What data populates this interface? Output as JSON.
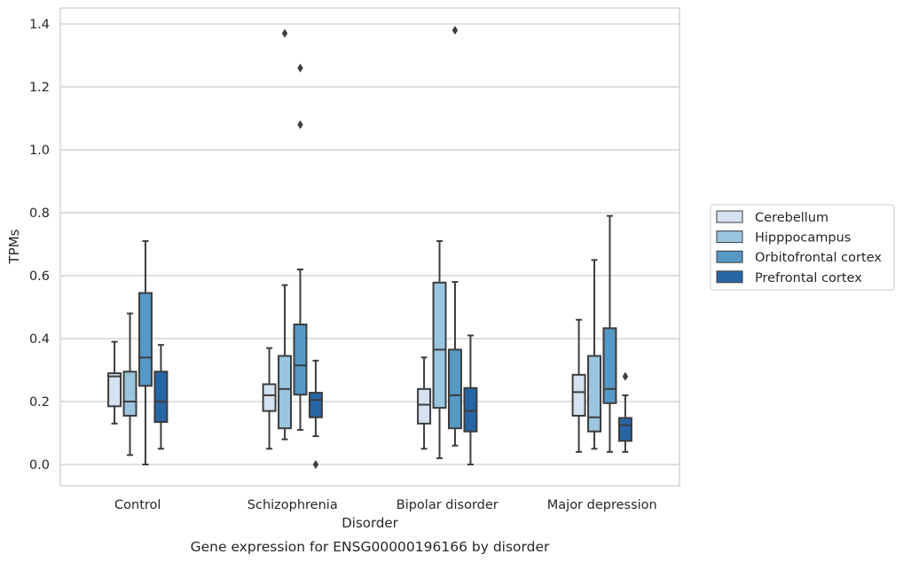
{
  "chart_data": {
    "type": "box",
    "title": "",
    "caption": "Gene expression for ENSG00000196166 by disorder",
    "xlabel": "Disorder",
    "ylabel": "TPMs",
    "ylim": [
      -0.065,
      1.45
    ],
    "yticks": [
      "0.0",
      "0.2",
      "0.4",
      "0.6",
      "0.8",
      "1.0",
      "1.2",
      "1.4"
    ],
    "grid": "horizontal",
    "legend_position": "right",
    "categories": [
      "Control",
      "Schizophrenia",
      "Bipolar disorder",
      "Major depression"
    ],
    "series": [
      {
        "name": "Cerebellum",
        "color": "#d4e2f1",
        "boxes": [
          {
            "whislo": 0.13,
            "q1": 0.185,
            "median": 0.28,
            "q3": 0.29,
            "whishi": 0.39,
            "fliers": []
          },
          {
            "whislo": 0.05,
            "q1": 0.17,
            "median": 0.22,
            "q3": 0.255,
            "whishi": 0.37,
            "fliers": []
          },
          {
            "whislo": 0.05,
            "q1": 0.13,
            "median": 0.19,
            "q3": 0.24,
            "whishi": 0.34,
            "fliers": []
          },
          {
            "whislo": 0.04,
            "q1": 0.155,
            "median": 0.23,
            "q3": 0.285,
            "whishi": 0.46,
            "fliers": []
          }
        ]
      },
      {
        "name": "Hipppocampus",
        "color": "#9ac5e0",
        "boxes": [
          {
            "whislo": 0.03,
            "q1": 0.155,
            "median": 0.2,
            "q3": 0.295,
            "whishi": 0.48,
            "fliers": []
          },
          {
            "whislo": 0.08,
            "q1": 0.115,
            "median": 0.24,
            "q3": 0.345,
            "whishi": 0.57,
            "fliers": [
              1.37
            ]
          },
          {
            "whislo": 0.02,
            "q1": 0.18,
            "median": 0.365,
            "q3": 0.578,
            "whishi": 0.71,
            "fliers": []
          },
          {
            "whislo": 0.05,
            "q1": 0.105,
            "median": 0.15,
            "q3": 0.345,
            "whishi": 0.65,
            "fliers": []
          }
        ]
      },
      {
        "name": "Orbitofrontal cortex",
        "color": "#5698c6",
        "boxes": [
          {
            "whislo": 0.0,
            "q1": 0.25,
            "median": 0.34,
            "q3": 0.545,
            "whishi": 0.71,
            "fliers": []
          },
          {
            "whislo": 0.11,
            "q1": 0.222,
            "median": 0.315,
            "q3": 0.445,
            "whishi": 0.62,
            "fliers": [
              1.26,
              1.08
            ]
          },
          {
            "whislo": 0.06,
            "q1": 0.115,
            "median": 0.22,
            "q3": 0.365,
            "whishi": 0.58,
            "fliers": [
              1.38
            ]
          },
          {
            "whislo": 0.04,
            "q1": 0.195,
            "median": 0.24,
            "q3": 0.433,
            "whishi": 0.79,
            "fliers": []
          }
        ]
      },
      {
        "name": "Prefrontal cortex",
        "color": "#2766a6",
        "boxes": [
          {
            "whislo": 0.05,
            "q1": 0.135,
            "median": 0.2,
            "q3": 0.295,
            "whishi": 0.38,
            "fliers": []
          },
          {
            "whislo": 0.09,
            "q1": 0.15,
            "median": 0.205,
            "q3": 0.228,
            "whishi": 0.33,
            "fliers": [
              0.0
            ]
          },
          {
            "whislo": 0.0,
            "q1": 0.105,
            "median": 0.17,
            "q3": 0.243,
            "whishi": 0.41,
            "fliers": []
          },
          {
            "whislo": 0.04,
            "q1": 0.075,
            "median": 0.125,
            "q3": 0.148,
            "whishi": 0.22,
            "fliers": [
              0.28
            ]
          }
        ]
      }
    ]
  }
}
